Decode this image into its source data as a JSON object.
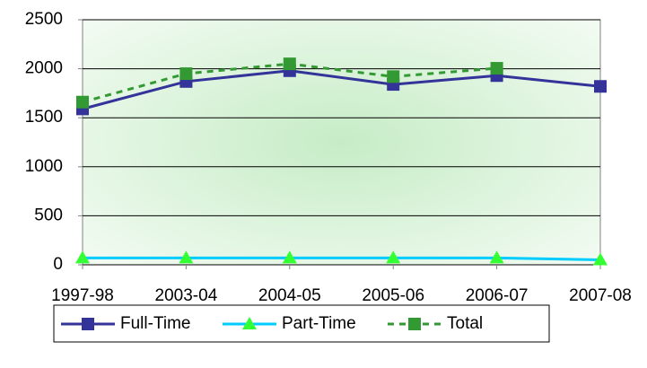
{
  "chart_data": {
    "type": "line",
    "categories": [
      "1997-98",
      "2003-04",
      "2004-05",
      "2005-06",
      "2006-07",
      "2007-08"
    ],
    "series": [
      {
        "name": "Full-Time",
        "color": "#333399",
        "marker_color": "#333399",
        "marker": "square",
        "line_style": "solid",
        "values": [
          1590,
          1870,
          1980,
          1840,
          1930,
          1820
        ]
      },
      {
        "name": "Part-Time",
        "color": "#00ccff",
        "marker_color": "#33ff33",
        "marker": "triangle",
        "line_style": "solid",
        "values": [
          70,
          70,
          70,
          70,
          70,
          50
        ]
      },
      {
        "name": "Total",
        "color": "#339933",
        "marker_color": "#339933",
        "marker": "square",
        "line_style": "dashed",
        "values": [
          1660,
          1950,
          2050,
          1920,
          2005,
          null
        ]
      }
    ],
    "ylim": [
      0,
      2500
    ],
    "yticks": [
      0,
      500,
      1000,
      1500,
      2000,
      2500
    ],
    "grid": true,
    "legend": "bottom"
  }
}
